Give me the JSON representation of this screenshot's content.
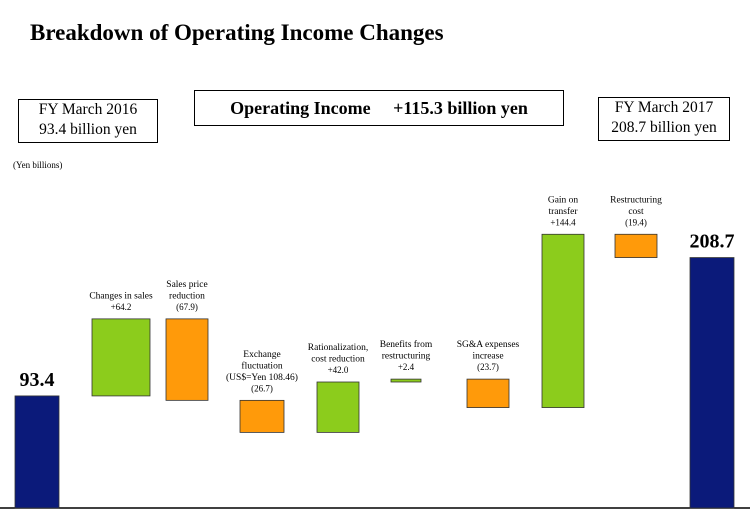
{
  "title": "Breakdown of Operating Income Changes",
  "start_box": {
    "line1": "FY March 2016",
    "line2": "93.4 billion yen"
  },
  "end_box": {
    "line1": "FY March 2017",
    "line2": "208.7 billion yen"
  },
  "center_box": {
    "label": "Operating Income",
    "value": "+115.3 billion yen"
  },
  "unit_label": "(Yen billions)",
  "colors": {
    "total": "#0b1a7a",
    "increase": "#8ccc1c",
    "decrease": "#ff9a0a"
  },
  "chart_data": {
    "type": "bar",
    "subtype": "waterfall",
    "unit": "Yen billions",
    "steps": [
      {
        "kind": "total",
        "value": 93.4,
        "value_label": "93.4",
        "label_lines": []
      },
      {
        "kind": "increase",
        "value": 64.2,
        "value_label": "+64.2",
        "label_lines": [
          "Changes in sales"
        ]
      },
      {
        "kind": "decrease",
        "value": -67.9,
        "value_label": "(67.9)",
        "label_lines": [
          "Sales price",
          "reduction"
        ]
      },
      {
        "kind": "decrease",
        "value": -26.7,
        "value_label": "(26.7)",
        "label_lines": [
          "Exchange",
          "fluctuation",
          "(US$=Yen 108.46)"
        ]
      },
      {
        "kind": "increase",
        "value": 42.0,
        "value_label": "+42.0",
        "label_lines": [
          "Rationalization,",
          "cost reduction"
        ]
      },
      {
        "kind": "increase",
        "value": 2.4,
        "value_label": "+2.4",
        "label_lines": [
          "Benefits from",
          "restructuring"
        ]
      },
      {
        "kind": "decrease",
        "value": -23.7,
        "value_label": "(23.7)",
        "label_lines": [
          "SG&A expenses",
          "increase"
        ]
      },
      {
        "kind": "increase",
        "value": 144.4,
        "value_label": "+144.4",
        "label_lines": [
          "Gain on",
          "transfer"
        ]
      },
      {
        "kind": "decrease",
        "value": -19.4,
        "value_label": "(19.4)",
        "label_lines": [
          "Restructuring",
          "cost"
        ]
      },
      {
        "kind": "total",
        "value": 208.7,
        "value_label": "208.7",
        "label_lines": []
      }
    ],
    "ylim": [
      0,
      230
    ],
    "grid": false,
    "legend": "none"
  }
}
